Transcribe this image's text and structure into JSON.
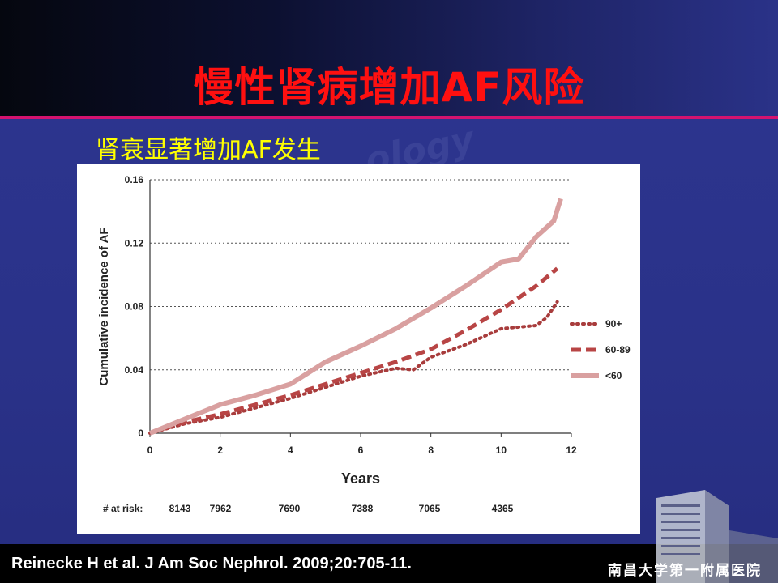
{
  "slide": {
    "title": "慢性肾病增加AF风险",
    "subtitle": "肾衰显著增加AF发生",
    "watermark": "ology",
    "citation": "Reinecke H et al. J Am Soc Nephrol. 2009;20:705-11.",
    "hospital_name": "南昌大学第一附属医院"
  },
  "chart_data": {
    "type": "line",
    "title": "",
    "xlabel": "Years",
    "ylabel": "Cumulative incidence of AF",
    "xlim": [
      0,
      12
    ],
    "ylim": [
      0,
      0.16
    ],
    "x_ticks": [
      "0",
      "2",
      "4",
      "6",
      "8",
      "10",
      "12"
    ],
    "y_ticks": [
      "0",
      "0.04",
      "0.08",
      "0.12",
      "0.16"
    ],
    "grid": "horizontal dotted",
    "legend_position": "right",
    "series": [
      {
        "name": "90+",
        "color": "#a83c3c",
        "style": "dotted",
        "x": [
          0,
          1,
          2,
          3,
          4,
          5,
          6,
          7,
          7.5,
          8,
          8.5,
          9,
          9.5,
          10,
          10.5,
          11,
          11.3,
          11.6
        ],
        "y": [
          0,
          0.006,
          0.01,
          0.016,
          0.022,
          0.029,
          0.036,
          0.041,
          0.04,
          0.048,
          0.052,
          0.056,
          0.061,
          0.066,
          0.067,
          0.068,
          0.073,
          0.083
        ]
      },
      {
        "name": "60-89",
        "color": "#b84545",
        "style": "dashed",
        "x": [
          0,
          1,
          2,
          3,
          4,
          5,
          6,
          7,
          8,
          9,
          10,
          11,
          11.6
        ],
        "y": [
          0,
          0.007,
          0.012,
          0.018,
          0.024,
          0.031,
          0.038,
          0.045,
          0.053,
          0.065,
          0.078,
          0.093,
          0.104
        ]
      },
      {
        "name": "<60",
        "color": "#d9a0a0",
        "style": "solid",
        "x": [
          0,
          1,
          2,
          3,
          4,
          5,
          6,
          7,
          8,
          9,
          10,
          10.5,
          11,
          11.5,
          11.7
        ],
        "y": [
          0,
          0.009,
          0.018,
          0.024,
          0.031,
          0.045,
          0.055,
          0.066,
          0.079,
          0.093,
          0.108,
          0.11,
          0.124,
          0.134,
          0.148
        ]
      }
    ],
    "legend": [
      "90+",
      "60-89",
      "<60"
    ],
    "at_risk_label": "# at risk:",
    "at_risk": [
      {
        "year": 0,
        "value": "8143"
      },
      {
        "year": 2,
        "value": "7962"
      },
      {
        "year": 4,
        "value": "7690"
      },
      {
        "year": 6,
        "value": "7388"
      },
      {
        "year": 8,
        "value": "7065"
      },
      {
        "year": 10,
        "value": "4365"
      }
    ]
  }
}
